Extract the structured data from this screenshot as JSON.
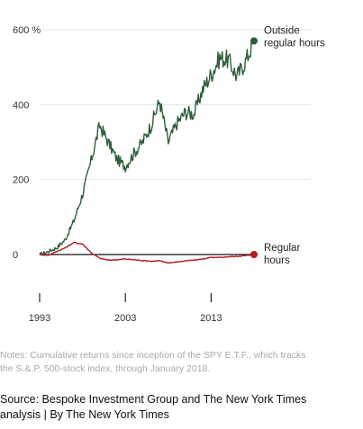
{
  "chart_data": {
    "type": "line",
    "x": [
      1993,
      1994,
      1995,
      1996,
      1997,
      1998,
      1999,
      2000,
      2001,
      2002,
      2003,
      2004,
      2005,
      2006,
      2007,
      2008,
      2009,
      2010,
      2011,
      2012,
      2013,
      2014,
      2015,
      2016,
      2017,
      2018
    ],
    "series": [
      {
        "name": "Outside regular hours",
        "color": "#2e5e3a",
        "values": [
          0,
          8,
          18,
          40,
          90,
          160,
          250,
          345,
          300,
          255,
          235,
          270,
          300,
          345,
          410,
          300,
          350,
          380,
          375,
          440,
          480,
          525,
          520,
          475,
          515,
          570
        ]
      },
      {
        "name": "Regular hours",
        "color": "#b01c22",
        "values": [
          0,
          -2,
          8,
          18,
          32,
          28,
          5,
          -10,
          -15,
          -14,
          -12,
          -14,
          -16,
          -18,
          -17,
          -22,
          -20,
          -17,
          -15,
          -12,
          -8,
          -8,
          -6,
          -5,
          -3,
          0
        ]
      }
    ],
    "ylim": [
      0,
      600
    ],
    "yticks": [
      0,
      200,
      400,
      600
    ],
    "ytick_labels": [
      "0",
      "200",
      "400",
      "600 %"
    ],
    "xticks": [
      1993,
      2003,
      2013
    ],
    "xtick_labels": [
      "1993",
      "2003",
      "2013"
    ],
    "grid": true,
    "series_label_lines": [
      [
        "Outside",
        "regular hours"
      ],
      [
        "Regular",
        "hours"
      ]
    ]
  },
  "notes": [
    "Notes: Cumulative returns since inception of the SPY E.T.F., which tracks",
    "the S.&.P. 500-stock index, through January 2018."
  ],
  "source": [
    "Source: Bespoke Investment Group and The New York Times",
    "analysis | By The New York Times"
  ]
}
